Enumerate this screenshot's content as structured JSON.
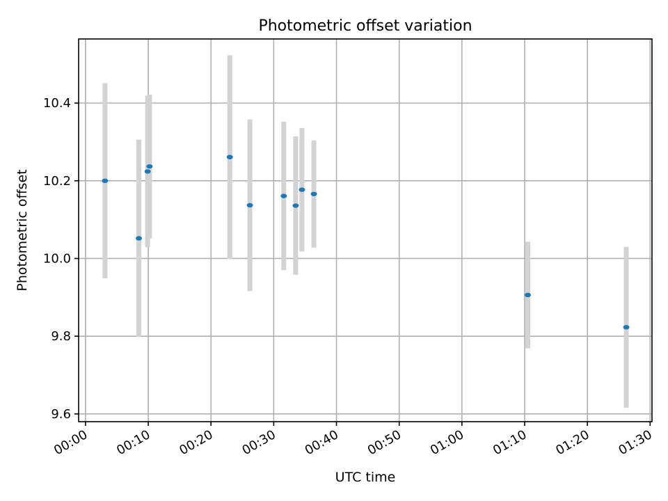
{
  "chart_data": {
    "type": "scatter",
    "title": "Photometric offset variation",
    "xlabel": "UTC time",
    "ylabel": "Photometric offset",
    "x_ticks": [
      {
        "minute": 0,
        "label": "00:00"
      },
      {
        "minute": 10,
        "label": "00:10"
      },
      {
        "minute": 20,
        "label": "00:20"
      },
      {
        "minute": 30,
        "label": "00:30"
      },
      {
        "minute": 40,
        "label": "00:40"
      },
      {
        "minute": 50,
        "label": "00:50"
      },
      {
        "minute": 60,
        "label": "01:00"
      },
      {
        "minute": 70,
        "label": "01:10"
      },
      {
        "minute": 80,
        "label": "01:20"
      },
      {
        "minute": 90,
        "label": "01:30"
      }
    ],
    "y_ticks": [
      {
        "value": 9.6,
        "label": "9.6"
      },
      {
        "value": 9.8,
        "label": "9.8"
      },
      {
        "value": 10.0,
        "label": "10.0"
      },
      {
        "value": 10.2,
        "label": "10.2"
      },
      {
        "value": 10.4,
        "label": "10.4"
      }
    ],
    "xlim": [
      "-00:01:06",
      "01:30:18"
    ],
    "ylim": [
      9.58,
      10.565
    ],
    "grid": true,
    "marker_color": "#1f77b4",
    "errorbar_color": "#d3d3d3",
    "points": [
      {
        "time": "00:03:06",
        "y": 10.2,
        "yerr": 0.251
      },
      {
        "time": "00:08:30",
        "y": 10.052,
        "yerr": 0.254
      },
      {
        "time": "00:09:54",
        "y": 10.224,
        "yerr": 0.195
      },
      {
        "time": "00:10:12",
        "y": 10.237,
        "yerr": 0.185
      },
      {
        "time": "00:23:00",
        "y": 10.261,
        "yerr": 0.262
      },
      {
        "time": "00:26:12",
        "y": 10.137,
        "yerr": 0.221
      },
      {
        "time": "00:31:36",
        "y": 10.161,
        "yerr": 0.191
      },
      {
        "time": "00:33:30",
        "y": 10.136,
        "yerr": 0.178
      },
      {
        "time": "00:34:30",
        "y": 10.177,
        "yerr": 0.159
      },
      {
        "time": "00:36:24",
        "y": 10.166,
        "yerr": 0.138
      },
      {
        "time": "01:10:30",
        "y": 9.906,
        "yerr": 0.137
      },
      {
        "time": "01:26:12",
        "y": 9.823,
        "yerr": 0.207
      }
    ]
  }
}
